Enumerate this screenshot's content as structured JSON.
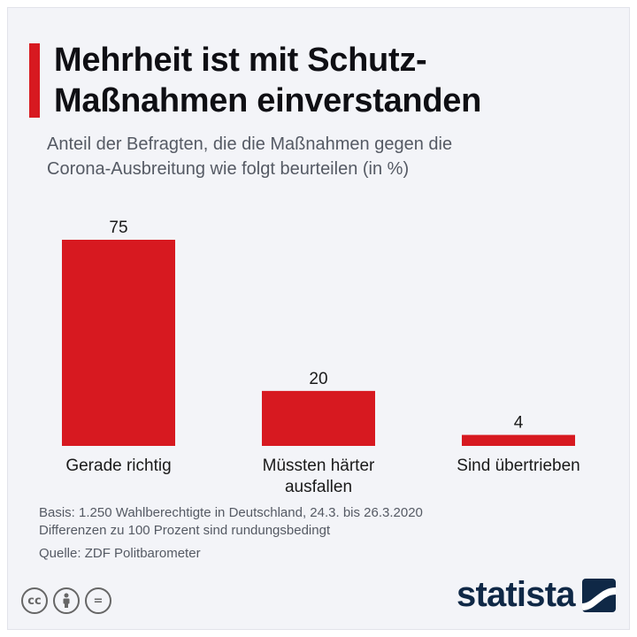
{
  "header": {
    "title_lines": [
      "Mehrheit ist mit Schutz-",
      "Maßnahmen einverstanden"
    ],
    "subtitle_lines": [
      "Anteil der Befragten, die die Maßnahmen gegen die",
      "Corona-Ausbreitung wie folgt beurteilen (in %)"
    ]
  },
  "chart_data": {
    "type": "bar",
    "title": "Mehrheit ist mit Schutz-Maßnahmen einverstanden",
    "subtitle": "Anteil der Befragten, die die Maßnahmen gegen die Corona-Ausbreitung wie folgt beurteilen (in %)",
    "categories": [
      "Gerade richtig",
      "Müssten härter ausfallen",
      "Sind übertrieben"
    ],
    "category_lines": [
      [
        "Gerade richtig"
      ],
      [
        "Müssten härter",
        "ausfallen"
      ],
      [
        "Sind übertrieben"
      ]
    ],
    "values": [
      75,
      20,
      4
    ],
    "xlabel": "",
    "ylabel": "",
    "ylim": [
      0,
      75
    ],
    "grid": false,
    "bar_color": "#d71920"
  },
  "footer": {
    "basis": "Basis: 1.250 Wahlberechtigte in Deutschland, 24.3. bis 26.3.2020",
    "note": "Differenzen zu 100 Prozent sind rundungsbedingt",
    "source": "Quelle: ZDF Politbarometer"
  },
  "license_icons": [
    {
      "name": "cc-icon",
      "glyph": "cc"
    },
    {
      "name": "attribution-icon",
      "glyph": "●"
    },
    {
      "name": "no-derivatives-icon",
      "glyph": "="
    }
  ],
  "brand": {
    "name": "statista",
    "color": "#0f2846"
  }
}
